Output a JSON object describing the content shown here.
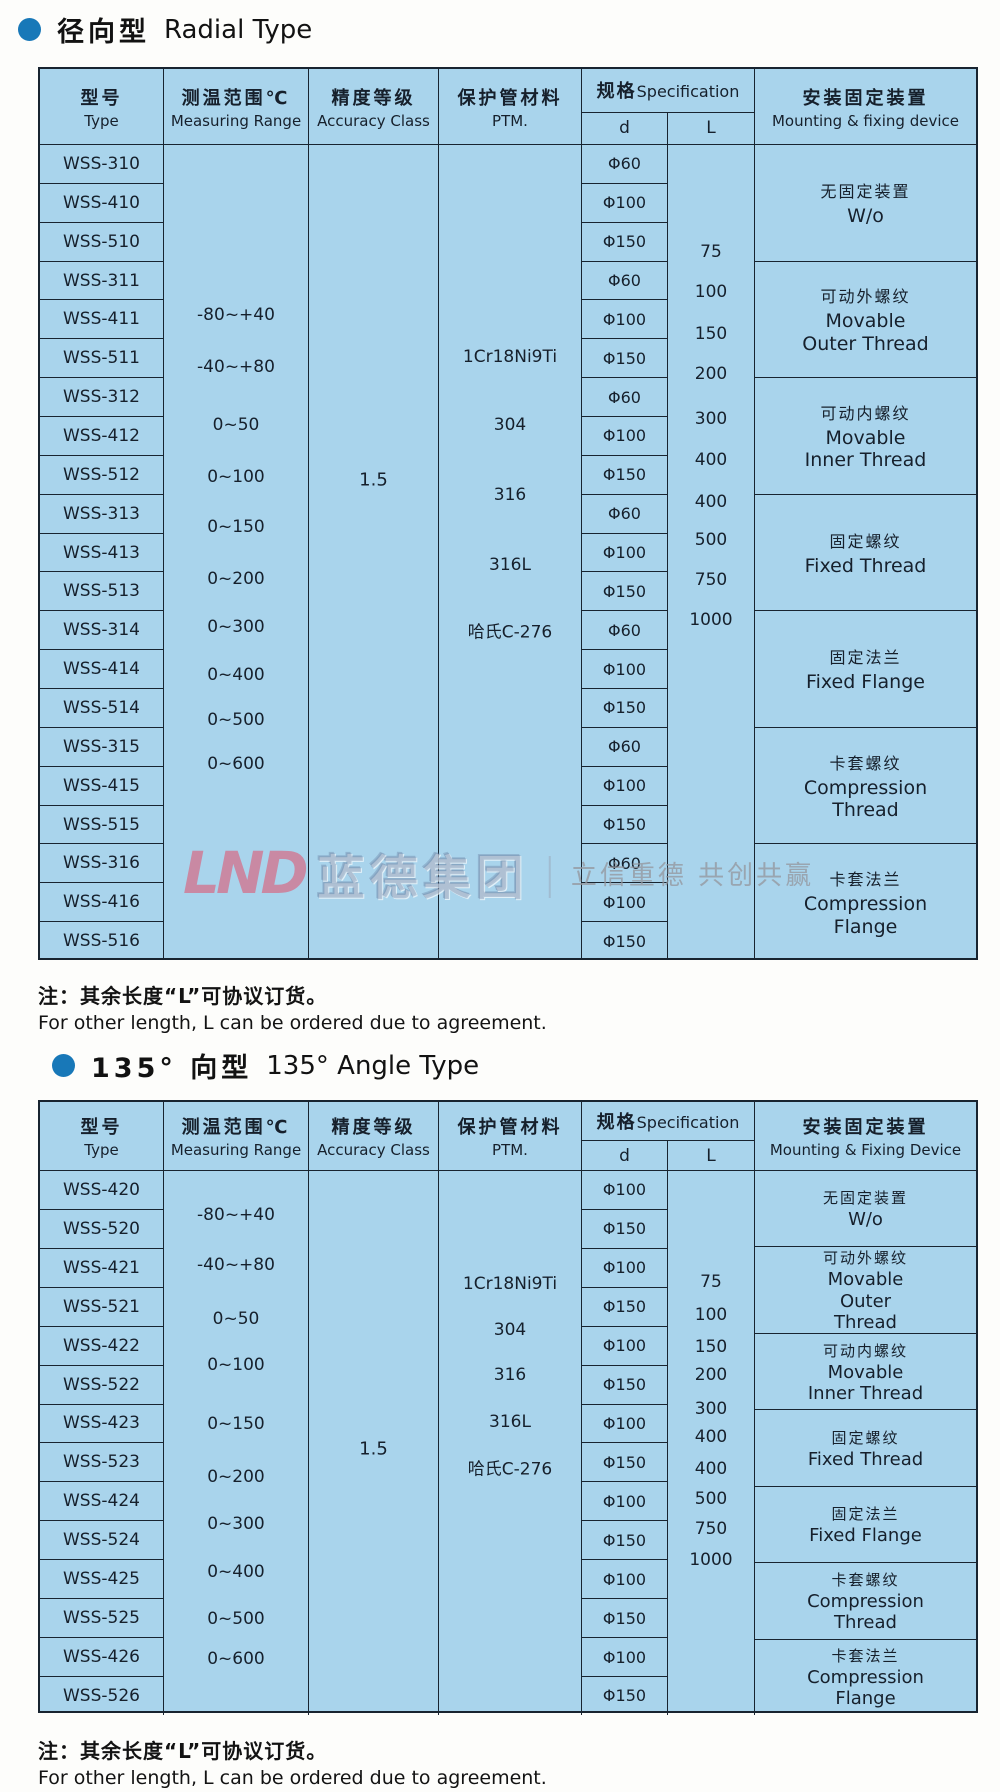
{
  "watermark": {
    "logo": "LND",
    "brand": "蓝德集团",
    "divider": "|",
    "slogan": "立信重德 共创共赢"
  },
  "sections": [
    {
      "title_zh": "径向型",
      "title_en": "Radial Type",
      "header": {
        "type_zh": "型号",
        "type_en": "Type",
        "range_zh": "测温范围℃",
        "range_en": "Measuring Range",
        "accuracy_zh": "精度等级",
        "accuracy_en": "Accuracy Class",
        "ptm_zh": "保护管材料",
        "ptm_en": "PTM.",
        "spec_zh": "规格",
        "spec_en": "Specification",
        "spec_d": "d",
        "spec_l": "L",
        "mount_zh": "安装固定装置",
        "mount_en": "Mounting & fixing device"
      },
      "types": [
        "WSS-310",
        "WSS-410",
        "WSS-510",
        "WSS-311",
        "WSS-411",
        "WSS-511",
        "WSS-312",
        "WSS-412",
        "WSS-512",
        "WSS-313",
        "WSS-413",
        "WSS-513",
        "WSS-314",
        "WSS-414",
        "WSS-514",
        "WSS-315",
        "WSS-415",
        "WSS-515",
        "WSS-316",
        "WSS-416",
        "WSS-516"
      ],
      "measuring_ranges": [
        "-80~+40",
        "-40~+80",
        "0~50",
        "0~100",
        "0~150",
        "0~200",
        "0~300",
        "0~400",
        "0~500",
        "0~600"
      ],
      "accuracy_class": "1.5",
      "ptm_materials": [
        "1Cr18Ni9Ti",
        "304",
        "316",
        "316L",
        "哈氏C-276"
      ],
      "d_values": [
        "Φ60",
        "Φ100",
        "Φ150",
        "Φ60",
        "Φ100",
        "Φ150",
        "Φ60",
        "Φ100",
        "Φ150",
        "Φ60",
        "Φ100",
        "Φ150",
        "Φ60",
        "Φ100",
        "Φ150",
        "Φ60",
        "Φ100",
        "Φ150",
        "Φ60",
        "Φ100",
        "Φ150"
      ],
      "l_values": [
        "75",
        "100",
        "150",
        "200",
        "300",
        "400",
        "400",
        "500",
        "750",
        "1000"
      ],
      "mounting": [
        {
          "zh": "无固定装置",
          "en": "W/o"
        },
        {
          "zh": "可动外螺纹",
          "en": "Movable Outer Thread"
        },
        {
          "zh": "可动内螺纹",
          "en": "Movable Inner Thread"
        },
        {
          "zh": "固定螺纹",
          "en": "Fixed Thread"
        },
        {
          "zh": "固定法兰",
          "en": "Fixed Flange"
        },
        {
          "zh": "卡套螺纹",
          "en": "Compression Thread"
        },
        {
          "zh": "卡套法兰",
          "en": "Compression Flange"
        }
      ],
      "note_zh": "注：其余长度“L”可协议订货。",
      "note_en": "For other length, L can be ordered due to agreement."
    },
    {
      "title_zh": "135° 向型",
      "title_en": "135° Angle Type",
      "header": {
        "type_zh": "型号",
        "type_en": "Type",
        "range_zh": "测温范围℃",
        "range_en": "Measuring Range",
        "accuracy_zh": "精度等级",
        "accuracy_en": "Accuracy Class",
        "ptm_zh": "保护管材料",
        "ptm_en": "PTM.",
        "spec_zh": "规格",
        "spec_en": "Specification",
        "spec_d": "d",
        "spec_l": "L",
        "mount_zh": "安装固定装置",
        "mount_en": "Mounting & Fixing Device"
      },
      "types": [
        "WSS-420",
        "WSS-520",
        "WSS-421",
        "WSS-521",
        "WSS-422",
        "WSS-522",
        "WSS-423",
        "WSS-523",
        "WSS-424",
        "WSS-524",
        "WSS-425",
        "WSS-525",
        "WSS-426",
        "WSS-526"
      ],
      "measuring_ranges": [
        "-80~+40",
        "-40~+80",
        "0~50",
        "0~100",
        "0~150",
        "0~200",
        "0~300",
        "0~400",
        "0~500",
        "0~600"
      ],
      "accuracy_class": "1.5",
      "ptm_materials": [
        "1Cr18Ni9Ti",
        "304",
        "316",
        "316L",
        "哈氏C-276"
      ],
      "d_values": [
        "Φ100",
        "Φ150",
        "Φ100",
        "Φ150",
        "Φ100",
        "Φ150",
        "Φ100",
        "Φ150",
        "Φ100",
        "Φ150",
        "Φ100",
        "Φ150",
        "Φ100",
        "Φ150"
      ],
      "l_values": [
        "75",
        "100",
        "150",
        "200",
        "300",
        "400",
        "400",
        "500",
        "750",
        "1000"
      ],
      "mounting": [
        {
          "zh": "无固定装置",
          "en": "W/o"
        },
        {
          "zh": "可动外螺纹",
          "en": "Movable Outer Thread"
        },
        {
          "zh": "可动内螺纹",
          "en": "Movable Inner Thread"
        },
        {
          "zh": "固定螺纹",
          "en": "Fixed Thread"
        },
        {
          "zh": "固定法兰",
          "en": "Fixed Flange"
        },
        {
          "zh": "卡套螺纹",
          "en": "Compression Thread"
        },
        {
          "zh": "卡套法兰",
          "en": "Compression Flange"
        }
      ],
      "note_zh": "注：其余长度“L”可协议订货。",
      "note_en": "For other length, L can be ordered due to agreement."
    }
  ],
  "colors": {
    "table_bg": "#a9d4ec",
    "border": "#182430",
    "bullet": "#1878b8",
    "watermark_pink": "#dd5a76"
  }
}
